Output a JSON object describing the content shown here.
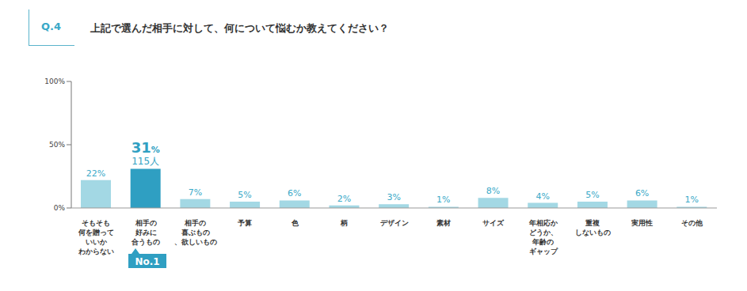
{
  "chart_data": {
    "type": "bar",
    "label": "Q.4",
    "title": "上記で選んだ相手に対して、何について悩むか教えてください？",
    "categories": [
      "そもそも\n何を贈って\nいいか\nわからない",
      "相手の\n好みに\n合うもの",
      "相手の\n喜ぶもの\n、欲しいもの",
      "予算",
      "色",
      "柄",
      "デザイン",
      "素材",
      "サイズ",
      "年相応か\nどうか、\n年齢の\nギャップ",
      "重複\nしないもの",
      "実用性",
      "その他"
    ],
    "values": [
      22,
      31,
      7,
      5,
      6,
      2,
      3,
      1,
      8,
      4,
      5,
      6,
      1
    ],
    "value_labels": [
      "22%",
      "31%",
      "7%",
      "5%",
      "6%",
      "2%",
      "3%",
      "1%",
      "8%",
      "4%",
      "5%",
      "6%",
      "1%"
    ],
    "colors": [
      "#a3d8e4",
      "#2f9fc2",
      "#a3d8e4",
      "#a3d8e4",
      "#a3d8e4",
      "#a3d8e4",
      "#a3d8e4",
      "#a3d8e4",
      "#a3d8e4",
      "#a3d8e4",
      "#a3d8e4",
      "#a3d8e4",
      "#a3d8e4"
    ],
    "data_labels": true,
    "annotations": [
      {
        "category": "相手の\n好みに\n合うもの",
        "label": "115人",
        "badge": "No.1"
      }
    ],
    "ylim": [
      0,
      100
    ],
    "yticks": [
      {
        "value": 0,
        "label": "0%"
      },
      {
        "value": 50,
        "label": "50%"
      },
      {
        "value": 100,
        "label": "100%"
      }
    ],
    "grid": false
  }
}
